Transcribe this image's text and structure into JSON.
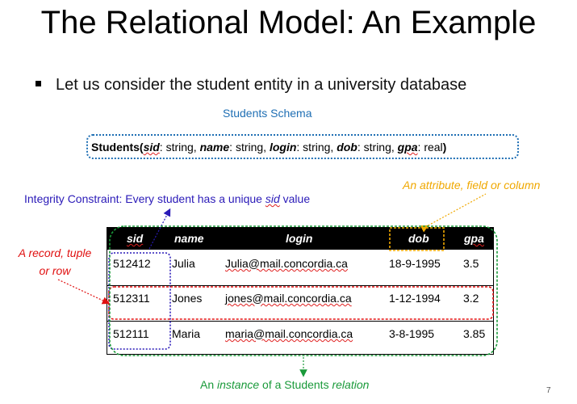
{
  "title": "The Relational Model: An Example",
  "bullet": "Let us consider the student entity in a university database",
  "schema": {
    "caption": "Students Schema",
    "relation": "Students(",
    "attrs": [
      {
        "name": "sid",
        "type": ": string, "
      },
      {
        "name": "name",
        "type": ": string, "
      },
      {
        "name": "login",
        "type": ": string, "
      },
      {
        "name": "dob",
        "type": ": string, "
      },
      {
        "name": "gpa",
        "type": ": real"
      }
    ],
    "close": ")"
  },
  "annotations": {
    "attribute": "An attribute, field or column",
    "integrity_prefix": "Integrity Constraint: Every student has a unique ",
    "integrity_key": "sid",
    "integrity_suffix": " value",
    "record_line1": "A record, tuple",
    "record_line2": "or row",
    "instance_a": "An ",
    "instance_b": "instance",
    "instance_c": " of a Students ",
    "instance_d": "relation"
  },
  "table": {
    "headers": [
      "sid",
      "name",
      "login",
      "dob",
      "gpa"
    ],
    "rows": [
      [
        "512412",
        "Julia",
        "Julia@mail.concordia.ca",
        "18-9-1995",
        "3.5"
      ],
      [
        "512311",
        "Jones",
        "jones@mail.concordia.ca",
        "1-12-1994",
        "3.2"
      ],
      [
        "512111",
        "Maria",
        "maria@mail.concordia.ca",
        "3-8-1995",
        "3.85"
      ]
    ]
  },
  "colors": {
    "schema": "#1f6fb4",
    "attribute": "#f0a800",
    "integrity": "#2a1ab8",
    "record": "#e01010",
    "instance": "#1a9a3a"
  },
  "page_number": "7"
}
